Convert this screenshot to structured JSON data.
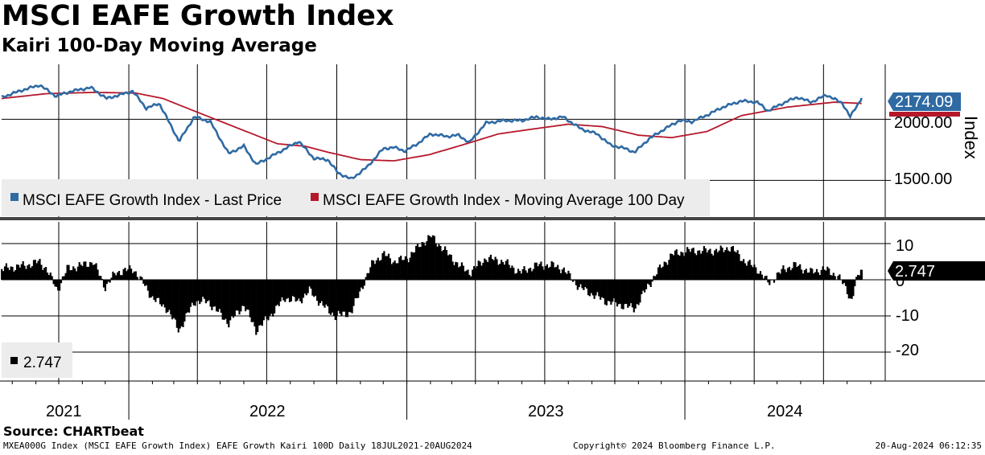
{
  "title": "MSCI EAFE Growth Index",
  "subtitle": "Kairi 100-Day Moving Average",
  "source": "Source: CHARTbeat",
  "footer": {
    "left": "MXEA000G Index (MSCI EAFE Growth Index) EAFE Growth Kairi 100D  Daily 18JUL2021-20AUG2024",
    "center": "Copyright© 2024 Bloomberg Finance L.P.",
    "right": "20-Aug-2024 06:12:35"
  },
  "colors": {
    "price": "#2f6aa3",
    "moving_average": "#b5182b",
    "kairi": "#000000",
    "grid": "#000000",
    "legend_bg": "#ececec"
  },
  "chart_data": [
    {
      "type": "line",
      "x_axis": "date",
      "yaxis_label": "Index",
      "ylim": [
        1200,
        2450
      ],
      "yticks": [
        "1500.00",
        "2000.00"
      ],
      "last_value_label": "2174.09",
      "legend": [
        "MSCI EAFE Growth Index - Last Price",
        "MSCI EAFE Growth Index - Moving Average 100 Day"
      ],
      "series": [
        {
          "name": "MSCI EAFE Growth Index - Last Price",
          "points": [
            [
              "2021-07-18",
              2180
            ],
            [
              "2021-08-15",
              2240
            ],
            [
              "2021-09-06",
              2280
            ],
            [
              "2021-09-27",
              2190
            ],
            [
              "2021-10-18",
              2230
            ],
            [
              "2021-11-12",
              2260
            ],
            [
              "2021-12-03",
              2170
            ],
            [
              "2021-12-20",
              2200
            ],
            [
              "2022-01-06",
              2230
            ],
            [
              "2022-01-24",
              2090
            ],
            [
              "2022-02-10",
              2130
            ],
            [
              "2022-03-08",
              1820
            ],
            [
              "2022-03-28",
              2020
            ],
            [
              "2022-04-18",
              1980
            ],
            [
              "2022-05-12",
              1720
            ],
            [
              "2022-06-01",
              1780
            ],
            [
              "2022-06-17",
              1630
            ],
            [
              "2022-07-08",
              1700
            ],
            [
              "2022-08-12",
              1820
            ],
            [
              "2022-09-01",
              1680
            ],
            [
              "2022-09-19",
              1670
            ],
            [
              "2022-10-03",
              1560
            ],
            [
              "2022-10-20",
              1510
            ],
            [
              "2022-11-10",
              1610
            ],
            [
              "2022-12-01",
              1760
            ],
            [
              "2022-12-15",
              1770
            ],
            [
              "2022-12-30",
              1740
            ],
            [
              "2023-01-15",
              1800
            ],
            [
              "2023-02-01",
              1880
            ],
            [
              "2023-02-23",
              1860
            ],
            [
              "2023-03-10",
              1870
            ],
            [
              "2023-03-24",
              1810
            ],
            [
              "2023-04-15",
              1970
            ],
            [
              "2023-05-10",
              1990
            ],
            [
              "2023-06-01",
              1990
            ],
            [
              "2023-06-20",
              2020
            ],
            [
              "2023-07-05",
              2000
            ],
            [
              "2023-07-25",
              2020
            ],
            [
              "2023-08-18",
              1920
            ],
            [
              "2023-09-08",
              1880
            ],
            [
              "2023-09-25",
              1790
            ],
            [
              "2023-10-15",
              1760
            ],
            [
              "2023-10-27",
              1730
            ],
            [
              "2023-11-15",
              1840
            ],
            [
              "2023-12-05",
              1920
            ],
            [
              "2023-12-25",
              1990
            ],
            [
              "2024-01-10",
              1980
            ],
            [
              "2024-02-01",
              2040
            ],
            [
              "2024-02-20",
              2100
            ],
            [
              "2024-03-15",
              2150
            ],
            [
              "2024-04-05",
              2140
            ],
            [
              "2024-04-19",
              2070
            ],
            [
              "2024-05-15",
              2150
            ],
            [
              "2024-05-28",
              2180
            ],
            [
              "2024-06-15",
              2140
            ],
            [
              "2024-07-05",
              2200
            ],
            [
              "2024-07-26",
              2130
            ],
            [
              "2024-08-05",
              2020
            ],
            [
              "2024-08-20",
              2174.09
            ]
          ]
        },
        {
          "name": "MSCI EAFE Growth Index - Moving Average 100 Day",
          "points": [
            [
              "2021-07-18",
              2170
            ],
            [
              "2021-09-15",
              2210
            ],
            [
              "2021-11-15",
              2220
            ],
            [
              "2022-01-10",
              2215
            ],
            [
              "2022-02-15",
              2170
            ],
            [
              "2022-03-15",
              2100
            ],
            [
              "2022-05-15",
              1950
            ],
            [
              "2022-07-15",
              1800
            ],
            [
              "2022-08-20",
              1780
            ],
            [
              "2022-09-20",
              1730
            ],
            [
              "2022-11-01",
              1670
            ],
            [
              "2022-12-15",
              1660
            ],
            [
              "2023-01-30",
              1710
            ],
            [
              "2023-03-15",
              1790
            ],
            [
              "2023-05-01",
              1880
            ],
            [
              "2023-06-15",
              1920
            ],
            [
              "2023-08-01",
              1960
            ],
            [
              "2023-09-15",
              1940
            ],
            [
              "2023-11-01",
              1870
            ],
            [
              "2023-12-15",
              1850
            ],
            [
              "2024-01-30",
              1900
            ],
            [
              "2024-03-15",
              2030
            ],
            [
              "2024-05-15",
              2100
            ],
            [
              "2024-07-15",
              2140
            ],
            [
              "2024-08-20",
              2130
            ]
          ]
        }
      ]
    },
    {
      "type": "bar",
      "x_axis": "date",
      "ylim": [
        -28,
        16
      ],
      "yticks": [
        "10",
        "0",
        "-10",
        "-20"
      ],
      "last_value_label": "2.747",
      "legend": [
        "2.747"
      ],
      "series": [
        {
          "name": "EAFE Growth Kairi 100D",
          "points": [
            [
              "2021-07-18",
              3
            ],
            [
              "2021-08-20",
              4
            ],
            [
              "2021-09-05",
              5
            ],
            [
              "2021-09-15",
              3
            ],
            [
              "2021-09-29",
              -3
            ],
            [
              "2021-10-12",
              3
            ],
            [
              "2021-11-01",
              4
            ],
            [
              "2021-11-15",
              5
            ],
            [
              "2021-12-01",
              -2
            ],
            [
              "2021-12-15",
              2
            ],
            [
              "2022-01-07",
              3
            ],
            [
              "2022-01-20",
              -1
            ],
            [
              "2022-02-01",
              -5
            ],
            [
              "2022-02-20",
              -8
            ],
            [
              "2022-03-08",
              -14
            ],
            [
              "2022-03-28",
              -6
            ],
            [
              "2022-04-15",
              -6
            ],
            [
              "2022-05-12",
              -12
            ],
            [
              "2022-06-01",
              -7
            ],
            [
              "2022-06-17",
              -14
            ],
            [
              "2022-07-05",
              -10
            ],
            [
              "2022-07-25",
              -5
            ],
            [
              "2022-08-12",
              -6
            ],
            [
              "2022-08-26",
              -3
            ],
            [
              "2022-09-12",
              -7
            ],
            [
              "2022-09-29",
              -10
            ],
            [
              "2022-10-20",
              -9
            ],
            [
              "2022-11-05",
              -1
            ],
            [
              "2022-11-18",
              5
            ],
            [
              "2022-12-02",
              7
            ],
            [
              "2022-12-16",
              5
            ],
            [
              "2023-01-02",
              6
            ],
            [
              "2023-01-20",
              10
            ],
            [
              "2023-02-02",
              12
            ],
            [
              "2023-02-20",
              8
            ],
            [
              "2023-03-10",
              4
            ],
            [
              "2023-03-25",
              2
            ],
            [
              "2023-04-15",
              6
            ],
            [
              "2023-05-08",
              5
            ],
            [
              "2023-05-30",
              2
            ],
            [
              "2023-06-20",
              4
            ],
            [
              "2023-07-10",
              4
            ],
            [
              "2023-07-25",
              3
            ],
            [
              "2023-08-15",
              -2
            ],
            [
              "2023-09-01",
              -4
            ],
            [
              "2023-09-20",
              -6
            ],
            [
              "2023-10-10",
              -7
            ],
            [
              "2023-10-27",
              -8
            ],
            [
              "2023-11-10",
              -3
            ],
            [
              "2023-11-25",
              2
            ],
            [
              "2023-12-15",
              7
            ],
            [
              "2024-01-05",
              8
            ],
            [
              "2024-01-25",
              8
            ],
            [
              "2024-02-15",
              8
            ],
            [
              "2024-03-01",
              9
            ],
            [
              "2024-03-20",
              5
            ],
            [
              "2024-04-05",
              3
            ],
            [
              "2024-04-20",
              -1
            ],
            [
              "2024-05-10",
              3
            ],
            [
              "2024-05-25",
              4
            ],
            [
              "2024-06-15",
              2
            ],
            [
              "2024-07-01",
              3
            ],
            [
              "2024-07-20",
              1
            ],
            [
              "2024-08-01",
              -3
            ],
            [
              "2024-08-06",
              -6
            ],
            [
              "2024-08-15",
              1
            ],
            [
              "2024-08-20",
              2.747
            ]
          ]
        }
      ]
    }
  ],
  "x_axis": {
    "labels": [
      "2021",
      "2022",
      "2023",
      "2024"
    ]
  }
}
